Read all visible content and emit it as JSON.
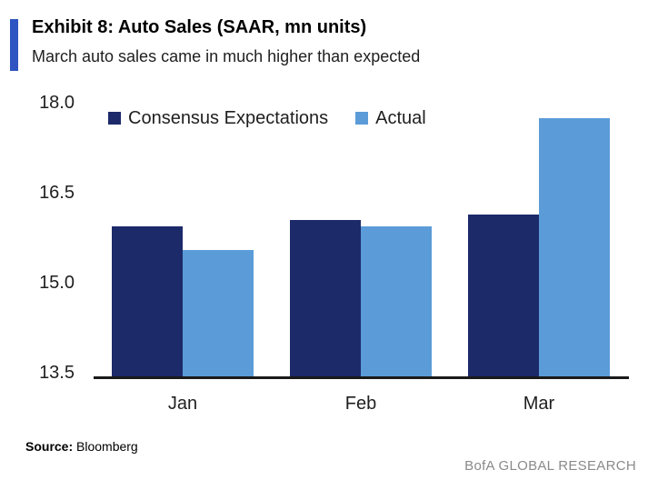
{
  "accent_color": "#2e55c1",
  "header": {
    "title": "Exhibit 8: Auto Sales (SAAR, mn units)",
    "subtitle": "March auto sales came in much higher than expected"
  },
  "chart_data": {
    "type": "bar",
    "title": "Exhibit 8: Auto Sales (SAAR, mn units)",
    "subtitle": "March auto sales came in much higher than expected",
    "categories": [
      "Jan",
      "Feb",
      "Mar"
    ],
    "series": [
      {
        "name": "Consensus Expectations",
        "color": "#1c2a6a",
        "values": [
          16.0,
          16.1,
          16.2
        ]
      },
      {
        "name": "Actual",
        "color": "#5b9cd8",
        "values": [
          15.6,
          16.0,
          17.8
        ]
      }
    ],
    "ylim": [
      13.5,
      18.0
    ],
    "yticks": [
      18.0,
      16.5,
      15.0,
      13.5
    ],
    "ytick_labels": [
      "18.0",
      "16.5",
      "15.0",
      "13.5"
    ],
    "xlabel": "",
    "ylabel": "",
    "grid": false,
    "legend_position": "top-left",
    "axis_color": "#1a1a1a"
  },
  "footer": {
    "source_label": "Source:",
    "source_value": "Bloomberg",
    "brand": "BofA GLOBAL RESEARCH",
    "brand_color": "#8a8a8a"
  }
}
